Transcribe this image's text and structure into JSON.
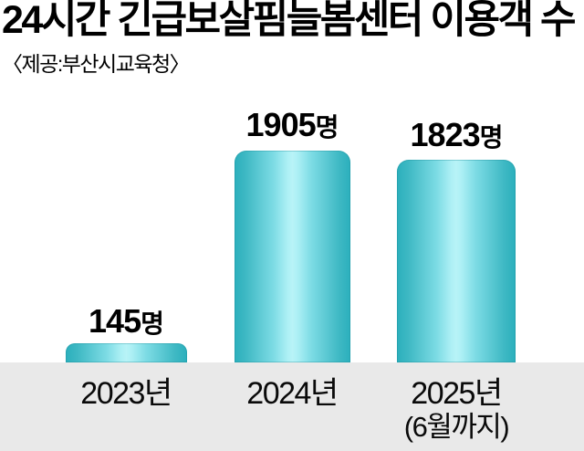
{
  "header": {
    "title": "24시간 긴급보살핌늘봄센터 이용객 수",
    "source": "〈제공:부산시교육청〉"
  },
  "chart_data": {
    "type": "bar",
    "title": "24시간 긴급보살핌늘봄센터 이용객 수",
    "source": "〈제공:부산시교육청〉",
    "categories": [
      "2023년",
      "2024년",
      "2025년 (6월까지)"
    ],
    "values": [
      145,
      1905,
      1823
    ],
    "unit": "명",
    "value_labels": [
      "145명",
      "1905명",
      "1823명"
    ],
    "ylim": [
      0,
      1905
    ],
    "grid": false,
    "legend": false,
    "axes_visible": false,
    "colors": {
      "bar_edge": "#2bafbc",
      "bar_highlight": "#b8f3f7",
      "category_band": "#e9e9e9",
      "text": "#000000",
      "background": "#ffffff"
    }
  },
  "bars": [
    {
      "year_label": "2023년",
      "sub_label": "",
      "value_number": "145",
      "unit": "명"
    },
    {
      "year_label": "2024년",
      "sub_label": "",
      "value_number": "1905",
      "unit": "명"
    },
    {
      "year_label": "2025년",
      "sub_label": "(6월까지)",
      "value_number": "1823",
      "unit": "명"
    }
  ]
}
